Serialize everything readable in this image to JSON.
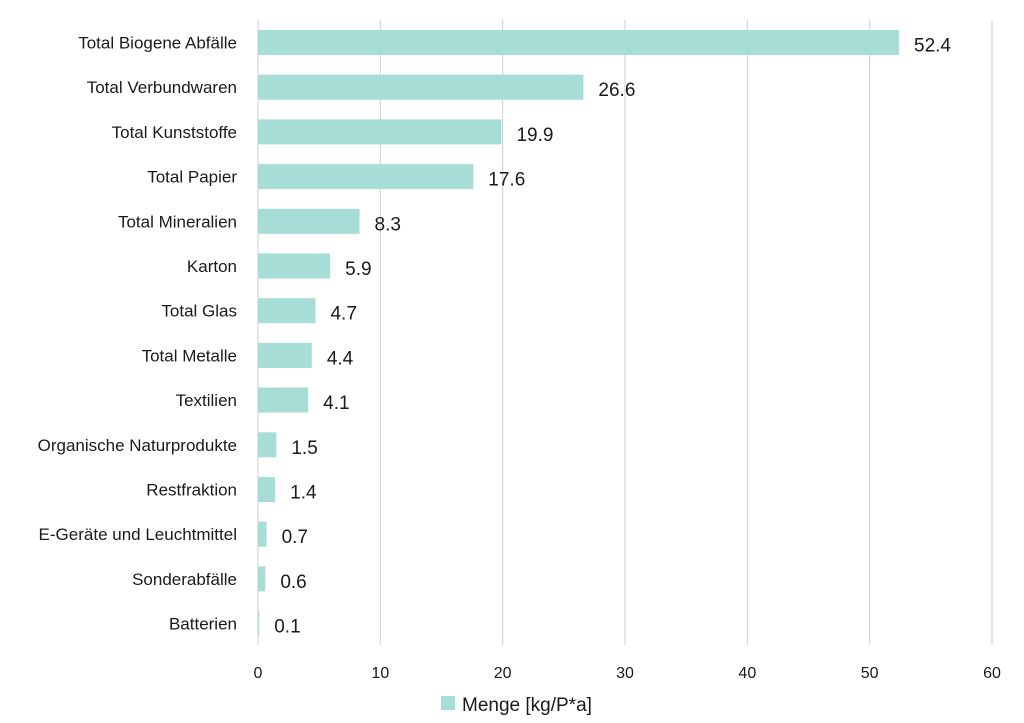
{
  "chart_data": {
    "type": "bar",
    "orientation": "horizontal",
    "categories": [
      "Total Biogene Abfälle",
      "Total Verbundwaren",
      "Total Kunststoffe",
      "Total Papier",
      "Total Mineralien",
      "Karton",
      "Total Glas",
      "Total Metalle",
      "Textilien",
      "Organische Naturprodukte",
      "Restfraktion",
      "E-Geräte und Leuchtmittel",
      "Sonderabfälle",
      "Batterien"
    ],
    "series": [
      {
        "name": "Menge [kg/P*a]",
        "values": [
          52.4,
          26.6,
          19.9,
          17.6,
          8.3,
          5.9,
          4.7,
          4.4,
          4.1,
          1.5,
          1.4,
          0.7,
          0.6,
          0.1
        ],
        "color": "#a6ddd6"
      }
    ],
    "xlim": [
      0,
      60
    ],
    "xticks": [
      0,
      10,
      20,
      30,
      40,
      50,
      60
    ],
    "grid": "vertical",
    "legend": "bottom",
    "title": "",
    "xlabel": "",
    "ylabel": ""
  }
}
